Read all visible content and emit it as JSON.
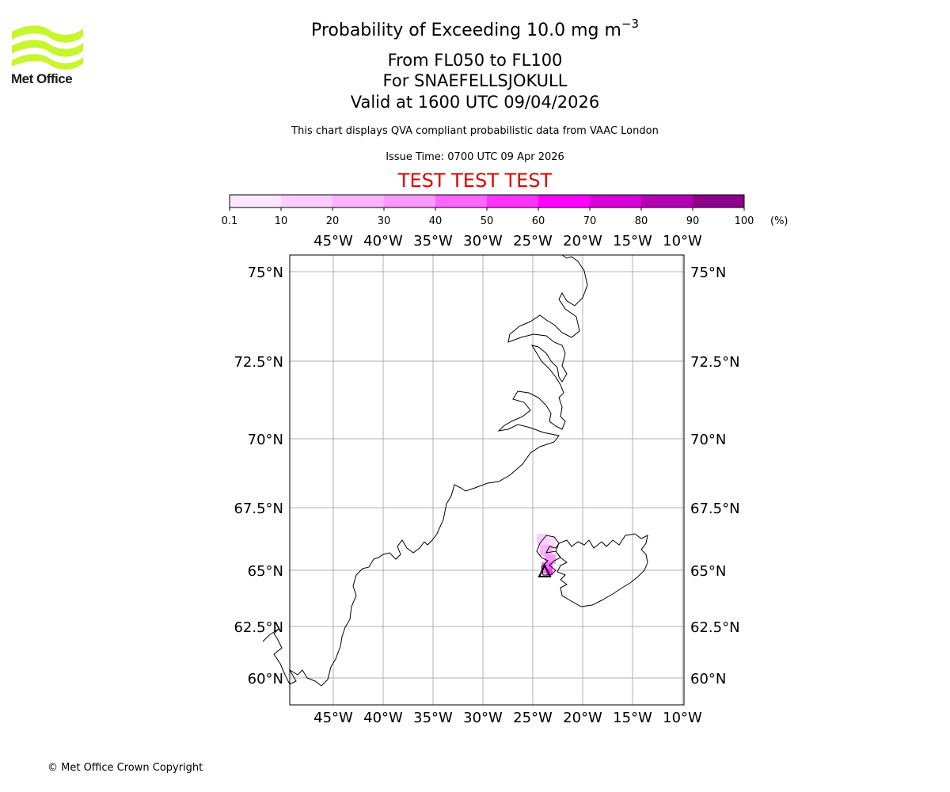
{
  "header": {
    "title_main": "Probability of Exceeding 10.0 mg m",
    "title_exponent": "−3",
    "level_range": "From FL050 to FL100",
    "volcano": "For SNAEFELLSJOKULL",
    "valid_time": "Valid at 1600 UTC 09/04/2026",
    "disclaimer": "This chart displays QVA compliant probabilistic data from VAAC London",
    "issue_time": "Issue Time: 0700 UTC 09 Apr 2026",
    "test_banner": "TEST TEST TEST"
  },
  "logo": {
    "text": "Met Office"
  },
  "colorbar": {
    "ticks": [
      "0.1",
      "10",
      "20",
      "30",
      "40",
      "50",
      "60",
      "70",
      "80",
      "90",
      "100"
    ],
    "unit": "(%)",
    "colors": [
      "#ffe6ff",
      "#ffccff",
      "#ffb3ff",
      "#ff99ff",
      "#ff66ff",
      "#ff33ff",
      "#ff00ff",
      "#d600d6",
      "#b300b3",
      "#8c008c",
      "#660066"
    ]
  },
  "map": {
    "lon_labels": [
      "45°W",
      "40°W",
      "35°W",
      "30°W",
      "25°W",
      "20°W",
      "15°W",
      "10°W"
    ],
    "lat_labels": [
      "75°N",
      "72.5°N",
      "70°N",
      "67.5°N",
      "65°N",
      "62.5°N",
      "60°N"
    ],
    "volcano_symbol": "volcano-triangle-icon"
  },
  "footer": {
    "copyright": "© Met Office Crown Copyright"
  }
}
